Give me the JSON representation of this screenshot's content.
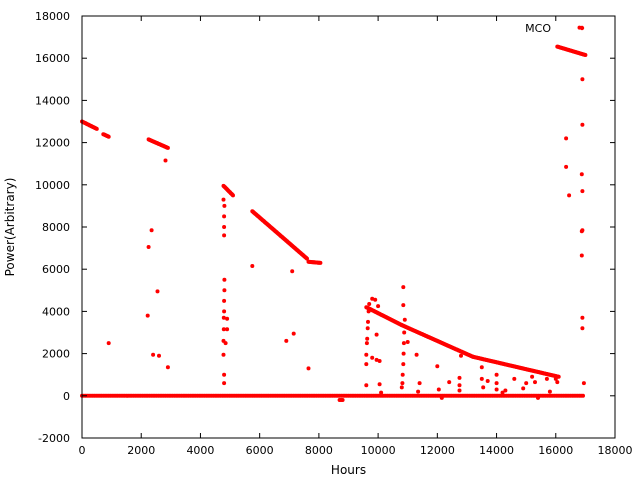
{
  "chart_data": {
    "type": "scatter",
    "title": "",
    "xlabel": "Hours",
    "ylabel": "Power(Arbitrary)",
    "xlim": [
      0,
      18000
    ],
    "ylim": [
      -2000,
      18000
    ],
    "xticks": [
      0,
      2000,
      4000,
      6000,
      8000,
      10000,
      12000,
      14000,
      16000,
      18000
    ],
    "yticks": [
      -2000,
      0,
      2000,
      4000,
      6000,
      8000,
      10000,
      12000,
      14000,
      16000,
      18000
    ],
    "grid": false,
    "legend_position": "top-right",
    "series": [
      {
        "name": "MCO",
        "color": "#ff0000",
        "marker": "circle",
        "segments": [
          {
            "x_from": 0,
            "x_to": 500,
            "y_from": 13000,
            "y_to": 12650
          },
          {
            "x_from": 720,
            "x_to": 900,
            "y_from": 12400,
            "y_to": 12280
          },
          {
            "x_from": 2250,
            "x_to": 2900,
            "y_from": 12150,
            "y_to": 11750
          },
          {
            "x_from": 4780,
            "x_to": 5100,
            "y_from": 9950,
            "y_to": 9500
          },
          {
            "x_from": 5750,
            "x_to": 7600,
            "y_from": 8750,
            "y_to": 6500
          },
          {
            "x_from": 7650,
            "x_to": 8050,
            "y_from": 6350,
            "y_to": 6300
          },
          {
            "x_from": 9600,
            "x_to": 10800,
            "y_from": 4200,
            "y_to": 3350
          },
          {
            "x_from": 10800,
            "x_to": 13200,
            "y_from": 3350,
            "y_to": 1850
          },
          {
            "x_from": 13200,
            "x_to": 16100,
            "y_from": 1850,
            "y_to": 900
          },
          {
            "x_from": 16050,
            "x_to": 17000,
            "y_from": 16550,
            "y_to": 16150
          }
        ],
        "baseline": {
          "y": 0,
          "x_from": 0,
          "x_to": 16950
        },
        "points": [
          [
            900,
            2500
          ],
          [
            2220,
            3800
          ],
          [
            2250,
            7050
          ],
          [
            2350,
            7850
          ],
          [
            2400,
            1950
          ],
          [
            2550,
            4950
          ],
          [
            2600,
            1900
          ],
          [
            2900,
            1350
          ],
          [
            2820,
            11150
          ],
          [
            4780,
            1950
          ],
          [
            4780,
            2600
          ],
          [
            4790,
            3150
          ],
          [
            4790,
            3700
          ],
          [
            4800,
            4000
          ],
          [
            4800,
            4500
          ],
          [
            4810,
            5000
          ],
          [
            4810,
            5500
          ],
          [
            4800,
            7600
          ],
          [
            4800,
            8000
          ],
          [
            4800,
            8500
          ],
          [
            4810,
            9000
          ],
          [
            4800,
            1000
          ],
          [
            4800,
            600
          ],
          [
            4850,
            2500
          ],
          [
            4900,
            3150
          ],
          [
            4900,
            3650
          ],
          [
            4780,
            9300
          ],
          [
            5750,
            6150
          ],
          [
            6900,
            2600
          ],
          [
            7100,
            5900
          ],
          [
            7150,
            2950
          ],
          [
            7650,
            1300
          ],
          [
            8700,
            -200
          ],
          [
            8750,
            -200
          ],
          [
            8800,
            -200
          ],
          [
            9600,
            500
          ],
          [
            9600,
            1500
          ],
          [
            9600,
            1950
          ],
          [
            9620,
            2500
          ],
          [
            9630,
            2700
          ],
          [
            9650,
            3200
          ],
          [
            9660,
            3500
          ],
          [
            9680,
            4000
          ],
          [
            9700,
            4350
          ],
          [
            9800,
            4600
          ],
          [
            9900,
            4550
          ],
          [
            9800,
            1800
          ],
          [
            9950,
            1700
          ],
          [
            9950,
            2900
          ],
          [
            10050,
            1650
          ],
          [
            10050,
            550
          ],
          [
            10100,
            150
          ],
          [
            10000,
            4250
          ],
          [
            10800,
            400
          ],
          [
            10820,
            600
          ],
          [
            10830,
            1000
          ],
          [
            10850,
            1500
          ],
          [
            10860,
            2000
          ],
          [
            10870,
            2500
          ],
          [
            10880,
            3000
          ],
          [
            10900,
            3600
          ],
          [
            10850,
            4300
          ],
          [
            10850,
            5150
          ],
          [
            11000,
            2550
          ],
          [
            11300,
            1950
          ],
          [
            11350,
            200
          ],
          [
            11400,
            600
          ],
          [
            12000,
            1400
          ],
          [
            12050,
            300
          ],
          [
            12150,
            -100
          ],
          [
            12400,
            650
          ],
          [
            12750,
            850
          ],
          [
            12750,
            500
          ],
          [
            12750,
            250
          ],
          [
            12800,
            1900
          ],
          [
            13500,
            1350
          ],
          [
            13500,
            800
          ],
          [
            13550,
            400
          ],
          [
            13700,
            700
          ],
          [
            14000,
            1000
          ],
          [
            14000,
            600
          ],
          [
            14000,
            300
          ],
          [
            14200,
            150
          ],
          [
            14300,
            250
          ],
          [
            14600,
            800
          ],
          [
            14900,
            350
          ],
          [
            15000,
            600
          ],
          [
            15200,
            900
          ],
          [
            15300,
            650
          ],
          [
            15400,
            -100
          ],
          [
            15700,
            800
          ],
          [
            15800,
            200
          ],
          [
            16000,
            800
          ],
          [
            16050,
            650
          ],
          [
            16350,
            12200
          ],
          [
            16350,
            10850
          ],
          [
            16450,
            9500
          ],
          [
            16800,
            17450
          ],
          [
            16900,
            15000
          ],
          [
            16900,
            12850
          ],
          [
            16880,
            10500
          ],
          [
            16900,
            9700
          ],
          [
            16880,
            7800
          ],
          [
            16900,
            7850
          ],
          [
            16880,
            6650
          ],
          [
            16900,
            3700
          ],
          [
            16900,
            3200
          ],
          [
            16950,
            600
          ]
        ]
      }
    ]
  }
}
